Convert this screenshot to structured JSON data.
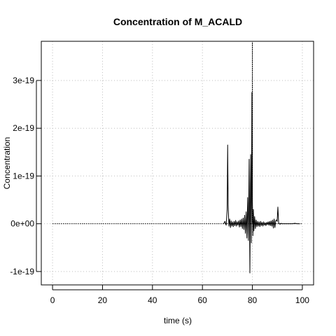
{
  "chart_data": {
    "type": "line",
    "title": "Concentration of M_ACALD",
    "xlabel": "time (s)",
    "ylabel": "Concentration",
    "xlim": [
      -4.5,
      104.5
    ],
    "ylim": [
      -1.28e-19,
      3.82e-19
    ],
    "x_ticks": [
      0,
      20,
      40,
      60,
      80,
      100
    ],
    "x_tick_labels": [
      "0",
      "20",
      "40",
      "60",
      "80",
      "100"
    ],
    "y_ticks": [
      -1e-19,
      0,
      1e-19,
      2e-19,
      3e-19
    ],
    "y_tick_labels": [
      "-1e-19",
      "0e+00",
      "1e-19",
      "2e-19",
      "3e-19"
    ],
    "grid": true,
    "grid_style": "dotted",
    "line_color": "#000000",
    "grid_color": "#bebebe",
    "series": [
      {
        "line_style": "dotted",
        "x": [
          0,
          69.9,
          80.0,
          80.0,
          80.0,
          100
        ],
        "y": [
          0,
          0,
          0,
          3.8e-19,
          0,
          0
        ]
      },
      {
        "line_style": "solid",
        "x": [
          68.5,
          69.0,
          69.5,
          69.9,
          70.1,
          70.3,
          70.6,
          70.9,
          71.2,
          71.5,
          71.8,
          72.1,
          72.4,
          72.7,
          73.0,
          73.3,
          73.6,
          73.9,
          74.2,
          74.5,
          74.8,
          75.1,
          75.4,
          75.7,
          76.0,
          76.3,
          76.6,
          76.9,
          77.2,
          77.5,
          77.8,
          78.1,
          78.4,
          78.7,
          79.0,
          79.3,
          79.6,
          79.8,
          80.0,
          80.2,
          80.4,
          80.6,
          80.9,
          81.2,
          81.5,
          81.8,
          82.1,
          82.4,
          82.7,
          83.0,
          83.3,
          83.6,
          83.9,
          84.2,
          84.5,
          84.8,
          85.1,
          85.4,
          85.7,
          86.0,
          86.3,
          86.6,
          86.9,
          87.2,
          87.5,
          87.8,
          88.1,
          88.4,
          88.7,
          89.0,
          89.3,
          89.6,
          89.9,
          90.2,
          90.5,
          90.8,
          91.1,
          91.4,
          91.7,
          92.0,
          94.0,
          96.0,
          97.0,
          98.0,
          99.0
        ],
        "y": [
          0,
          5e-21,
          -3e-21,
          3e-20,
          1.65e-19,
          4e-20,
          -5e-21,
          1e-20,
          -8e-21,
          6e-21,
          -5e-21,
          4e-21,
          -6e-21,
          5e-21,
          -4e-21,
          7e-21,
          -5e-21,
          4e-21,
          -3e-21,
          6e-21,
          -7e-21,
          8e-21,
          -6e-21,
          1e-20,
          -1e-20,
          1.2e-20,
          -1.2e-20,
          1.8e-20,
          -2e-20,
          2.5e-20,
          -3e-20,
          5.5e-20,
          -3.5e-20,
          1.35e-19,
          -1.03e-19,
          1.45e-19,
          -4e-20,
          2.75e-19,
          5e-20,
          -2.5e-20,
          3e-20,
          -1.5e-20,
          1.5e-20,
          -1e-20,
          8e-21,
          -6e-21,
          5e-21,
          -5e-21,
          4e-21,
          -6e-21,
          5e-21,
          -4e-21,
          3e-21,
          -5e-21,
          4e-21,
          -3e-21,
          2e-21,
          -4e-21,
          3e-21,
          -2e-21,
          4e-21,
          -3e-21,
          5e-21,
          -4e-21,
          6e-21,
          -5e-21,
          8e-21,
          -9e-21,
          1e-20,
          -8e-21,
          6e-21,
          8e-21,
          5e-21,
          3.5e-20,
          2e-21,
          0,
          -1e-21,
          1e-21,
          0,
          0,
          0,
          0,
          1e-21,
          0,
          0
        ]
      }
    ]
  }
}
